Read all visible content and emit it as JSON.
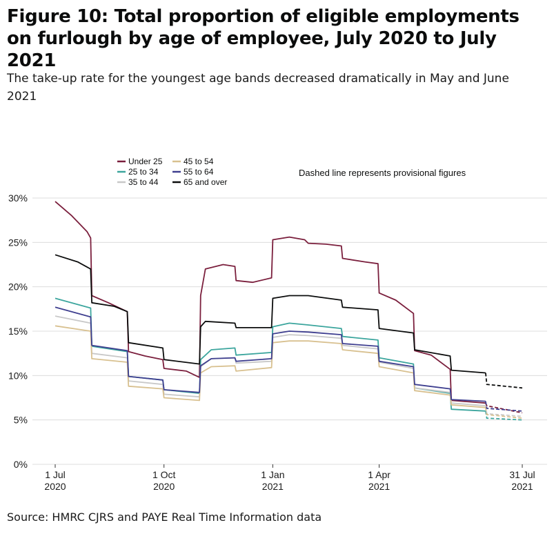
{
  "figure": {
    "title": "Figure 10: Total proportion of eligible employments on furlough by age of employee, July 2020 to July 2021",
    "subtitle": "The take-up rate for the youngest age bands decreased dramatically in May and June 2021",
    "source": "Source: HMRC CJRS and PAYE Real Time Information data"
  },
  "chart_data": {
    "type": "line",
    "annotation": "Dashed line represents provisional figures",
    "x_unit": "date",
    "xlim": [
      "2020-07-01",
      "2021-07-31"
    ],
    "ylim": [
      0,
      30
    ],
    "y_ticks": [
      0,
      5,
      10,
      15,
      20,
      25,
      30
    ],
    "y_tick_labels": [
      "0%",
      "5%",
      "10%",
      "15%",
      "20%",
      "25%",
      "30%"
    ],
    "x_ticks": [
      {
        "date": "2020-07-01",
        "line1": "1 Jul",
        "line2": "2020"
      },
      {
        "date": "2020-10-01",
        "line1": "1 Oct",
        "line2": "2020"
      },
      {
        "date": "2021-01-01",
        "line1": "1 Jan",
        "line2": "2021"
      },
      {
        "date": "2021-04-01",
        "line1": "1 Apr",
        "line2": "2021"
      },
      {
        "date": "2021-07-31",
        "line1": "31 Jul",
        "line2": "2021"
      }
    ],
    "grid": "horizontal",
    "legend_position": "top-left",
    "provisional_from": "2021-06-30",
    "series": [
      {
        "name": "Under 25",
        "color": "#7a1e3c",
        "points": [
          [
            "2020-07-01",
            29.6
          ],
          [
            "2020-07-15",
            28.0
          ],
          [
            "2020-07-28",
            26.2
          ],
          [
            "2020-07-31",
            25.5
          ],
          [
            "2020-08-01",
            19.0
          ],
          [
            "2020-08-15",
            18.2
          ],
          [
            "2020-08-31",
            17.2
          ],
          [
            "2020-09-01",
            12.7
          ],
          [
            "2020-09-15",
            12.2
          ],
          [
            "2020-09-30",
            11.8
          ],
          [
            "2020-10-01",
            10.8
          ],
          [
            "2020-10-20",
            10.5
          ],
          [
            "2020-10-31",
            9.8
          ],
          [
            "2020-11-01",
            19.0
          ],
          [
            "2020-11-05",
            22.0
          ],
          [
            "2020-11-20",
            22.5
          ],
          [
            "2020-11-30",
            22.3
          ],
          [
            "2020-12-01",
            20.7
          ],
          [
            "2020-12-15",
            20.5
          ],
          [
            "2020-12-31",
            21.0
          ],
          [
            "2021-01-01",
            25.3
          ],
          [
            "2021-01-15",
            25.6
          ],
          [
            "2021-01-28",
            25.3
          ],
          [
            "2021-01-31",
            24.9
          ],
          [
            "2021-02-15",
            24.8
          ],
          [
            "2021-02-28",
            24.6
          ],
          [
            "2021-03-01",
            23.2
          ],
          [
            "2021-03-20",
            22.8
          ],
          [
            "2021-03-31",
            22.6
          ],
          [
            "2021-04-01",
            19.3
          ],
          [
            "2021-04-15",
            18.5
          ],
          [
            "2021-04-30",
            17.0
          ],
          [
            "2021-05-01",
            12.8
          ],
          [
            "2021-05-15",
            12.3
          ],
          [
            "2021-05-31",
            10.7
          ],
          [
            "2021-06-01",
            7.2
          ],
          [
            "2021-06-20",
            7.0
          ],
          [
            "2021-06-30",
            6.9
          ],
          [
            "2021-07-01",
            6.6
          ],
          [
            "2021-07-31",
            5.8
          ]
        ]
      },
      {
        "name": "25 to 34",
        "color": "#3ba59d",
        "points": [
          [
            "2020-07-01",
            18.7
          ],
          [
            "2020-07-31",
            17.6
          ],
          [
            "2020-08-01",
            13.3
          ],
          [
            "2020-08-31",
            12.7
          ],
          [
            "2020-09-01",
            9.9
          ],
          [
            "2020-09-30",
            9.5
          ],
          [
            "2020-10-01",
            8.4
          ],
          [
            "2020-10-31",
            8.0
          ],
          [
            "2020-11-01",
            11.8
          ],
          [
            "2020-11-10",
            12.9
          ],
          [
            "2020-11-30",
            13.1
          ],
          [
            "2020-12-01",
            12.3
          ],
          [
            "2020-12-31",
            12.6
          ],
          [
            "2021-01-01",
            15.5
          ],
          [
            "2021-01-15",
            15.9
          ],
          [
            "2021-01-31",
            15.7
          ],
          [
            "2021-02-28",
            15.3
          ],
          [
            "2021-03-01",
            14.4
          ],
          [
            "2021-03-31",
            14.0
          ],
          [
            "2021-04-01",
            12.0
          ],
          [
            "2021-04-30",
            11.3
          ],
          [
            "2021-05-01",
            8.6
          ],
          [
            "2021-05-31",
            8.0
          ],
          [
            "2021-06-01",
            6.2
          ],
          [
            "2021-06-30",
            6.0
          ],
          [
            "2021-07-01",
            5.2
          ],
          [
            "2021-07-31",
            5.0
          ]
        ]
      },
      {
        "name": "35 to 44",
        "color": "#c8c8c8",
        "points": [
          [
            "2020-07-01",
            16.7
          ],
          [
            "2020-07-31",
            15.9
          ],
          [
            "2020-08-01",
            12.5
          ],
          [
            "2020-08-31",
            12.0
          ],
          [
            "2020-09-01",
            9.4
          ],
          [
            "2020-09-30",
            9.0
          ],
          [
            "2020-10-01",
            7.9
          ],
          [
            "2020-10-31",
            7.6
          ],
          [
            "2020-11-01",
            11.0
          ],
          [
            "2020-11-10",
            11.9
          ],
          [
            "2020-11-30",
            12.0
          ],
          [
            "2020-12-01",
            11.4
          ],
          [
            "2020-12-31",
            11.6
          ],
          [
            "2021-01-01",
            14.3
          ],
          [
            "2021-01-15",
            14.6
          ],
          [
            "2021-01-31",
            14.5
          ],
          [
            "2021-02-28",
            14.2
          ],
          [
            "2021-03-01",
            13.4
          ],
          [
            "2021-03-31",
            13.0
          ],
          [
            "2021-04-01",
            11.5
          ],
          [
            "2021-04-30",
            10.8
          ],
          [
            "2021-05-01",
            8.6
          ],
          [
            "2021-05-31",
            8.1
          ],
          [
            "2021-06-01",
            6.9
          ],
          [
            "2021-06-30",
            6.6
          ],
          [
            "2021-07-01",
            5.7
          ],
          [
            "2021-07-31",
            5.4
          ]
        ]
      },
      {
        "name": "45 to 54",
        "color": "#d8c08f",
        "points": [
          [
            "2020-07-01",
            15.6
          ],
          [
            "2020-07-31",
            15.0
          ],
          [
            "2020-08-01",
            11.9
          ],
          [
            "2020-08-31",
            11.5
          ],
          [
            "2020-09-01",
            8.8
          ],
          [
            "2020-09-30",
            8.5
          ],
          [
            "2020-10-01",
            7.5
          ],
          [
            "2020-10-31",
            7.2
          ],
          [
            "2020-11-01",
            10.3
          ],
          [
            "2020-11-10",
            11.0
          ],
          [
            "2020-11-30",
            11.1
          ],
          [
            "2020-12-01",
            10.5
          ],
          [
            "2020-12-31",
            10.9
          ],
          [
            "2021-01-01",
            13.7
          ],
          [
            "2021-01-15",
            13.9
          ],
          [
            "2021-01-31",
            13.9
          ],
          [
            "2021-02-28",
            13.6
          ],
          [
            "2021-03-01",
            12.9
          ],
          [
            "2021-03-31",
            12.5
          ],
          [
            "2021-04-01",
            11.0
          ],
          [
            "2021-04-30",
            10.3
          ],
          [
            "2021-05-01",
            8.3
          ],
          [
            "2021-05-31",
            7.8
          ],
          [
            "2021-06-01",
            6.7
          ],
          [
            "2021-06-30",
            6.4
          ],
          [
            "2021-07-01",
            5.6
          ],
          [
            "2021-07-31",
            5.2
          ]
        ]
      },
      {
        "name": "55 to 64",
        "color": "#3e3e8f",
        "points": [
          [
            "2020-07-01",
            17.7
          ],
          [
            "2020-07-31",
            16.6
          ],
          [
            "2020-08-01",
            13.4
          ],
          [
            "2020-08-31",
            12.8
          ],
          [
            "2020-09-01",
            9.9
          ],
          [
            "2020-09-30",
            9.5
          ],
          [
            "2020-10-01",
            8.4
          ],
          [
            "2020-10-31",
            8.1
          ],
          [
            "2020-11-01",
            11.1
          ],
          [
            "2020-11-10",
            11.9
          ],
          [
            "2020-11-30",
            12.0
          ],
          [
            "2020-12-01",
            11.6
          ],
          [
            "2020-12-31",
            11.9
          ],
          [
            "2021-01-01",
            14.7
          ],
          [
            "2021-01-15",
            15.0
          ],
          [
            "2021-01-31",
            14.9
          ],
          [
            "2021-02-28",
            14.6
          ],
          [
            "2021-03-01",
            13.6
          ],
          [
            "2021-03-31",
            13.3
          ],
          [
            "2021-04-01",
            11.6
          ],
          [
            "2021-04-30",
            11.0
          ],
          [
            "2021-05-01",
            9.0
          ],
          [
            "2021-05-31",
            8.5
          ],
          [
            "2021-06-01",
            7.3
          ],
          [
            "2021-06-30",
            7.1
          ],
          [
            "2021-07-01",
            6.3
          ],
          [
            "2021-07-31",
            6.0
          ]
        ]
      },
      {
        "name": "65 and over",
        "color": "#0b0c0c",
        "points": [
          [
            "2020-07-01",
            23.6
          ],
          [
            "2020-07-20",
            22.8
          ],
          [
            "2020-07-31",
            22.0
          ],
          [
            "2020-08-01",
            18.2
          ],
          [
            "2020-08-20",
            17.8
          ],
          [
            "2020-08-31",
            17.2
          ],
          [
            "2020-09-01",
            13.7
          ],
          [
            "2020-09-30",
            13.1
          ],
          [
            "2020-10-01",
            11.8
          ],
          [
            "2020-10-31",
            11.3
          ],
          [
            "2020-11-01",
            15.5
          ],
          [
            "2020-11-05",
            16.1
          ],
          [
            "2020-11-30",
            15.9
          ],
          [
            "2020-12-01",
            15.4
          ],
          [
            "2020-12-31",
            15.4
          ],
          [
            "2021-01-01",
            18.7
          ],
          [
            "2021-01-15",
            19.0
          ],
          [
            "2021-01-31",
            19.0
          ],
          [
            "2021-02-28",
            18.5
          ],
          [
            "2021-03-01",
            17.7
          ],
          [
            "2021-03-31",
            17.4
          ],
          [
            "2021-04-01",
            15.3
          ],
          [
            "2021-04-30",
            14.8
          ],
          [
            "2021-05-01",
            12.9
          ],
          [
            "2021-05-31",
            12.2
          ],
          [
            "2021-06-01",
            10.6
          ],
          [
            "2021-06-30",
            10.3
          ],
          [
            "2021-07-01",
            9.0
          ],
          [
            "2021-07-31",
            8.6
          ]
        ]
      }
    ]
  }
}
